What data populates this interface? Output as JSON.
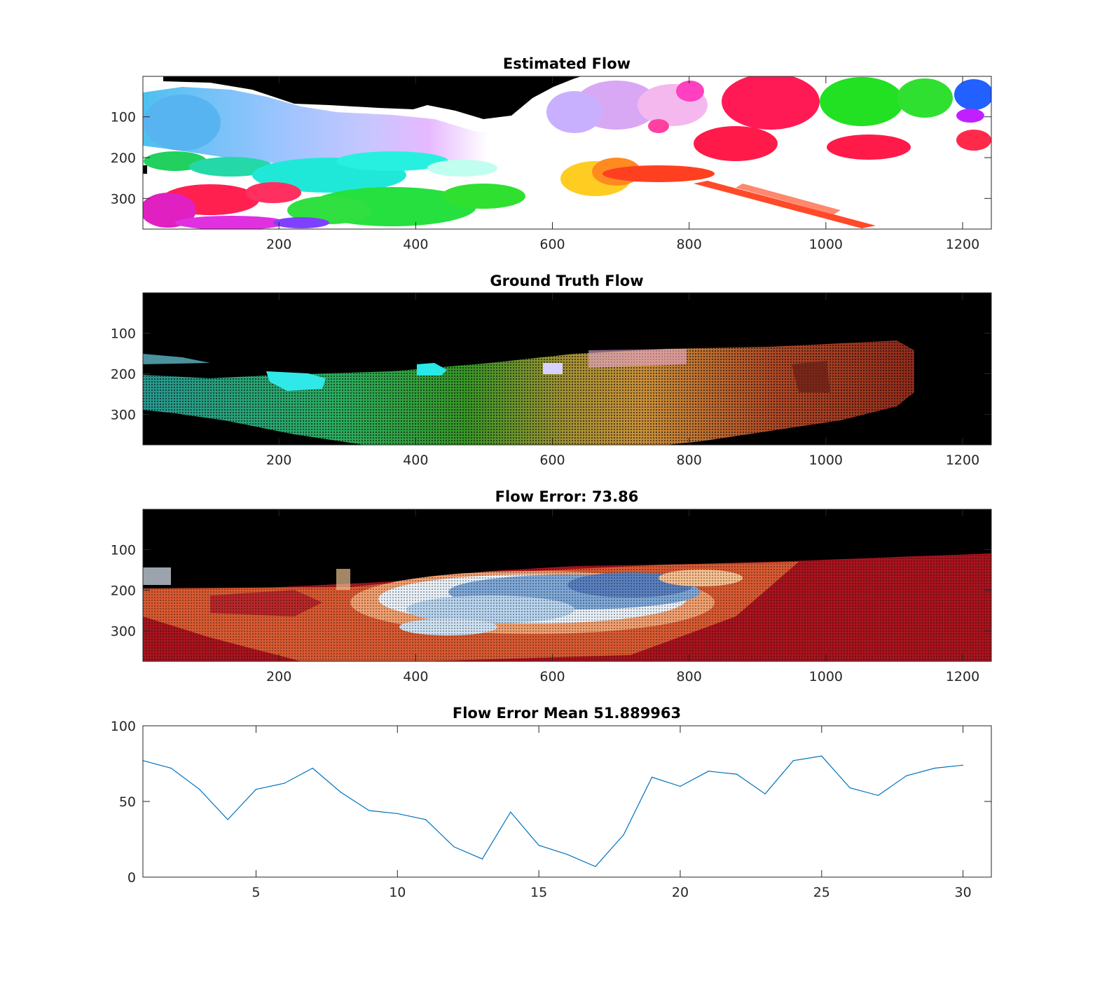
{
  "figure": {
    "panels": [
      {
        "title": "Estimated Flow",
        "kind": "image",
        "image_style": "estimated",
        "xticks": [
          "200",
          "400",
          "600",
          "800",
          "1000",
          "1200"
        ],
        "yticks": [
          "100",
          "200",
          "300"
        ]
      },
      {
        "title": "Ground Truth Flow",
        "kind": "image",
        "image_style": "groundtruth",
        "xticks": [
          "200",
          "400",
          "600",
          "800",
          "1000",
          "1200"
        ],
        "yticks": [
          "100",
          "200",
          "300"
        ]
      },
      {
        "title": "Flow Error: 73.86",
        "kind": "image",
        "image_style": "error",
        "xticks": [
          "200",
          "400",
          "600",
          "800",
          "1000",
          "1200"
        ],
        "yticks": [
          "100",
          "200",
          "300"
        ]
      },
      {
        "title": "Flow Error Mean 51.889963",
        "kind": "line",
        "xticks": [
          "5",
          "10",
          "15",
          "20",
          "25",
          "30"
        ],
        "yticks": [
          "0",
          "50",
          "100"
        ]
      }
    ]
  },
  "chart_data": [
    {
      "type": "heatmap",
      "title": "Estimated Flow",
      "xlabel": "",
      "ylabel": "",
      "xlim": [
        1,
        1242
      ],
      "ylim": [
        1,
        375
      ],
      "y_reversed": true,
      "xticks": [
        200,
        400,
        600,
        800,
        1000,
        1200
      ],
      "yticks": [
        100,
        200,
        300
      ]
    },
    {
      "type": "heatmap",
      "title": "Ground Truth Flow",
      "xlabel": "",
      "ylabel": "",
      "xlim": [
        1,
        1242
      ],
      "ylim": [
        1,
        375
      ],
      "y_reversed": true,
      "xticks": [
        200,
        400,
        600,
        800,
        1000,
        1200
      ],
      "yticks": [
        100,
        200,
        300
      ]
    },
    {
      "type": "heatmap",
      "title": "Flow Error: 73.86",
      "xlabel": "",
      "ylabel": "",
      "xlim": [
        1,
        1242
      ],
      "ylim": [
        1,
        375
      ],
      "y_reversed": true,
      "xticks": [
        200,
        400,
        600,
        800,
        1000,
        1200
      ],
      "yticks": [
        100,
        200,
        300
      ]
    },
    {
      "type": "line",
      "title": "Flow Error Mean 51.889963",
      "xlabel": "",
      "ylabel": "",
      "xlim": [
        1,
        31
      ],
      "ylim": [
        0,
        100
      ],
      "xticks": [
        5,
        10,
        15,
        20,
        25,
        30
      ],
      "yticks": [
        0,
        50,
        100
      ],
      "color": "#0072BD",
      "x": [
        1,
        2,
        3,
        4,
        5,
        6,
        7,
        8,
        9,
        10,
        11,
        12,
        13,
        14,
        15,
        16,
        17,
        18,
        19,
        20,
        21,
        22,
        23,
        24,
        25,
        26,
        27,
        28,
        29,
        30
      ],
      "series": [
        {
          "values": [
            77,
            72,
            58,
            38,
            58,
            62,
            72,
            56,
            44,
            42,
            38,
            20,
            12,
            43,
            21,
            15,
            7,
            28,
            66,
            60,
            70,
            68,
            55,
            77,
            80,
            59,
            54,
            67,
            72,
            74
          ]
        }
      ]
    }
  ]
}
